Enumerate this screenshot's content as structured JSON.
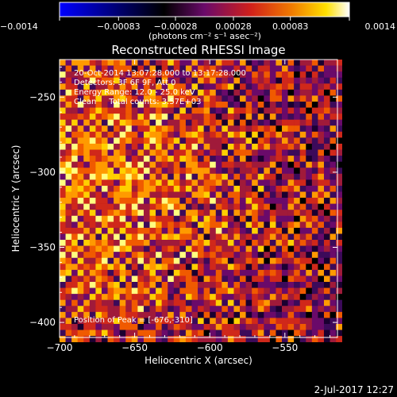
{
  "chart_data": {
    "type": "heatmap",
    "title": "Reconstructed RHESSI Image",
    "xlabel": "Heliocentric X (arcsec)",
    "ylabel": "Heliocentric Y (arcsec)",
    "xlim": [
      -700,
      -515
    ],
    "ylim": [
      -410,
      -225
    ],
    "x_ticks": [
      -700,
      -650,
      -600,
      -550
    ],
    "x_tick_labels": [
      "−700",
      "−650",
      "−600",
      "−550"
    ],
    "y_ticks": [
      -250,
      -300,
      -350,
      -400
    ],
    "y_tick_labels": [
      "−250",
      "−300",
      "−350",
      "−400"
    ],
    "colorbar": {
      "min": -0.0014,
      "max": 0.0014,
      "ticks": [
        -0.0014,
        -0.00083,
        -0.00028,
        0.00028,
        0.00083,
        0.0014
      ],
      "tick_labels": [
        "−0.0014",
        "−0.00083",
        "−0.00028",
        "0.00028",
        "0.00083",
        "0.0014"
      ],
      "unit_label": "(photons cm⁻² s⁻¹ asec⁻²)",
      "colors": [
        "#0000ff",
        "#000000",
        "#7a0a6a",
        "#d0201a",
        "#f07a00",
        "#ffe000",
        "#ffffff"
      ]
    },
    "annotations": [
      "20-Oct-2014 13:07:28.000 to 13:17:28.000",
      "Detectors: 3F 6F 9F, Att 0",
      "Energy Range: 12.0 - 25.0 keV",
      "Clean     Total counts: 3.57E+03"
    ],
    "peak_label": "Position of Peak = [-676,-310]",
    "peak": [
      -676,
      -310
    ],
    "grid": false,
    "pixel_size_arcsec": 4,
    "image_colors": [
      "#000000",
      "#1a0030",
      "#3c0a5a",
      "#6a0a6a",
      "#a01a3a",
      "#d0281a",
      "#f05a00",
      "#ff9a00",
      "#ffd000",
      "#ffff80"
    ]
  },
  "footer": {
    "timestamp": "2-Jul-2017 12:27"
  }
}
